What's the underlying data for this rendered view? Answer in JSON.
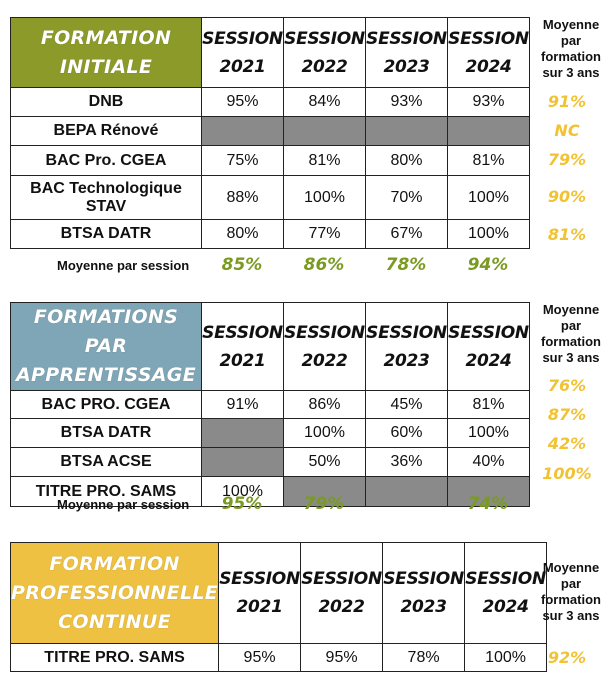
{
  "colors": {
    "initiale_header": "#8c9a2a",
    "apprentissage_header": "#7fa6b6",
    "continue_header": "#eec143",
    "grey_cell": "#8a8a8a",
    "avg_yellow": "#f1c232",
    "avg_green": "#7a9a22"
  },
  "avg_header": [
    "Moyenne",
    "par",
    "formation",
    "sur 3 ans"
  ],
  "session_avg_label": "Moyenne par session",
  "sessions": [
    "SESSION",
    "SESSION",
    "SESSION",
    "SESSION"
  ],
  "years": [
    "2021",
    "2022",
    "2023",
    "2024"
  ],
  "initiale": {
    "title_line1": "FORMATION",
    "title_line2": "INITIALE",
    "rows": [
      {
        "label": "DNB",
        "values": [
          "95%",
          "84%",
          "93%",
          "93%"
        ],
        "avg": "91%"
      },
      {
        "label": "BEPA Rénové",
        "values": [
          "",
          "",
          "",
          ""
        ],
        "avg": "NC"
      },
      {
        "label": "BAC Pro. CGEA",
        "values": [
          "75%",
          "81%",
          "80%",
          "81%"
        ],
        "avg": "79%"
      },
      {
        "label_line1": "BAC Technologique",
        "label_line2": "STAV",
        "values": [
          "88%",
          "100%",
          "70%",
          "100%"
        ],
        "avg": "90%"
      },
      {
        "label": "BTSA DATR",
        "values": [
          "80%",
          "77%",
          "67%",
          "100%"
        ],
        "avg": "81%"
      }
    ],
    "session_avgs": [
      "85%",
      "86%",
      "78%",
      "94%"
    ]
  },
  "apprentissage": {
    "title_line1": "FORMATIONS PAR",
    "title_line2": "APPRENTISSAGE",
    "rows": [
      {
        "label": "BAC PRO. CGEA",
        "values": [
          "91%",
          "86%",
          "45%",
          "81%"
        ],
        "avg": "76%"
      },
      {
        "label": "BTSA DATR",
        "values": [
          "",
          "100%",
          "60%",
          "100%"
        ],
        "avg": "87%"
      },
      {
        "label": "BTSA ACSE",
        "values": [
          "",
          "50%",
          "36%",
          "40%"
        ],
        "avg": "42%"
      },
      {
        "label": "TITRE PRO. SAMS",
        "values": [
          "100%",
          "",
          "",
          ""
        ],
        "avg": "100%"
      }
    ],
    "session_avgs": [
      "95%",
      "79%",
      "",
      "74%"
    ]
  },
  "continue": {
    "title_line1": "FORMATION",
    "title_line2": "PROFESSIONNELLE",
    "title_line3": "CONTINUE",
    "rows": [
      {
        "label": "TITRE PRO. SAMS",
        "values": [
          "95%",
          "95%",
          "78%",
          "100%"
        ],
        "avg": "92%"
      }
    ]
  }
}
